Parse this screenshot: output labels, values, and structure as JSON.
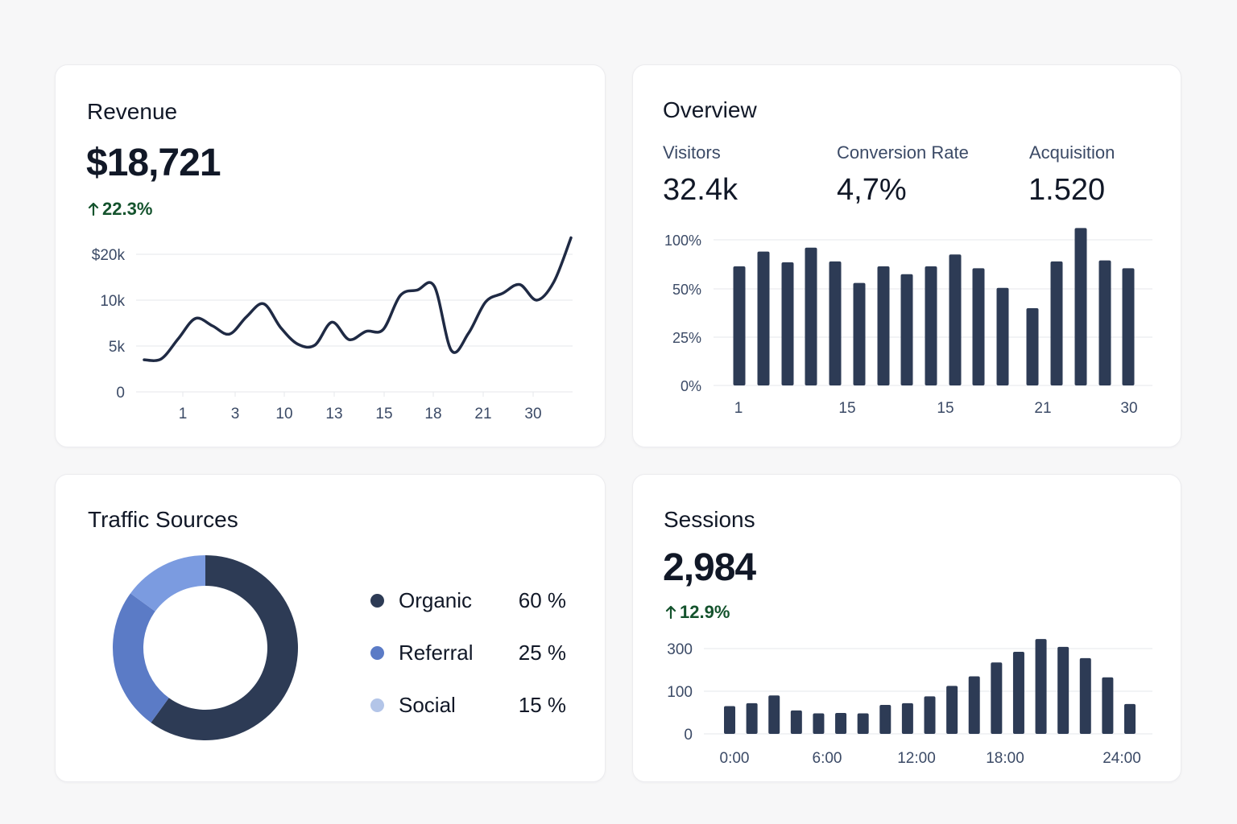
{
  "revenue": {
    "title": "Revenue",
    "value": "$18,721",
    "delta": "22.3%",
    "delta_color": "#14532d"
  },
  "overview": {
    "title": "Overview",
    "metrics": [
      {
        "label": "Visitors",
        "value": "32.4k"
      },
      {
        "label": "Conversion Rate",
        "value": "4,7%"
      },
      {
        "label": "Acquisition",
        "value": "1.520"
      }
    ]
  },
  "traffic": {
    "title": "Traffic Sources"
  },
  "sessions": {
    "title": "Sessions",
    "value": "2,984",
    "delta": "12.9%",
    "delta_color": "#14532d"
  },
  "colors": {
    "dark_navy": "#2d3b55",
    "mid_blue": "#5b7bc6",
    "light_blue": "#7b9be0",
    "pale_blue": "#b3c5e8",
    "grid": "#e5e7eb",
    "axis_text": "#3b4a66",
    "positive": "#14532d"
  },
  "icons": {
    "delta": "arrow-up-icon"
  },
  "chart_data": [
    {
      "id": "revenue",
      "type": "line",
      "x_tick_labels": [
        "1",
        "3",
        "10",
        "13",
        "15",
        "18",
        "21",
        "30"
      ],
      "y_tick_labels": [
        "$20k",
        "10k",
        "5k",
        "0"
      ],
      "y_tick_values": [
        20,
        10,
        5,
        0
      ],
      "grid": true,
      "series": [
        {
          "values": [
            3.5,
            3.6,
            5.8,
            8.0,
            7.2,
            6.3,
            8.2,
            9.6,
            7.0,
            5.2,
            5.1,
            7.6,
            5.7,
            6.6,
            6.8,
            11.0,
            12.2,
            13.0,
            4.5,
            6.4,
            9.8,
            11.5,
            13.4,
            10.0,
            14.0,
            23.6
          ]
        }
      ]
    },
    {
      "id": "overview",
      "type": "bar",
      "x_tick_labels": [
        "1",
        "15",
        "15",
        "21",
        "30"
      ],
      "y_tick_labels": [
        "100%",
        "50%",
        "25%",
        "0%"
      ],
      "y_tick_values": [
        100,
        50,
        25,
        0
      ],
      "grid": true,
      "series": [
        {
          "values": [
            73,
            88,
            77,
            92,
            78,
            56,
            73,
            65,
            73,
            85,
            71,
            51,
            40,
            78,
            112,
            79,
            71
          ]
        }
      ]
    },
    {
      "id": "traffic",
      "type": "pie",
      "donut": true,
      "slices": [
        {
          "label": "Organic",
          "value": 60,
          "display": "60 %",
          "color": "#2d3b55"
        },
        {
          "label": "Referral",
          "value": 25,
          "display": "25 %",
          "color": "#5b7bc6"
        },
        {
          "label": "Social",
          "value": 15,
          "display": "15 %",
          "color": "#b3c5e8"
        }
      ]
    },
    {
      "id": "sessions",
      "type": "bar",
      "x_tick_labels": [
        "0:00",
        "6:00",
        "12:00",
        "18:00",
        "24:00"
      ],
      "y_tick_labels": [
        "300",
        "100",
        "0"
      ],
      "y_tick_values": [
        300,
        100,
        0
      ],
      "grid": true,
      "series": [
        {
          "values": [
            65,
            72,
            90,
            55,
            48,
            49,
            48,
            68,
            72,
            88,
            125,
            170,
            235,
            285,
            345,
            308,
            255,
            165,
            70
          ]
        }
      ]
    }
  ]
}
